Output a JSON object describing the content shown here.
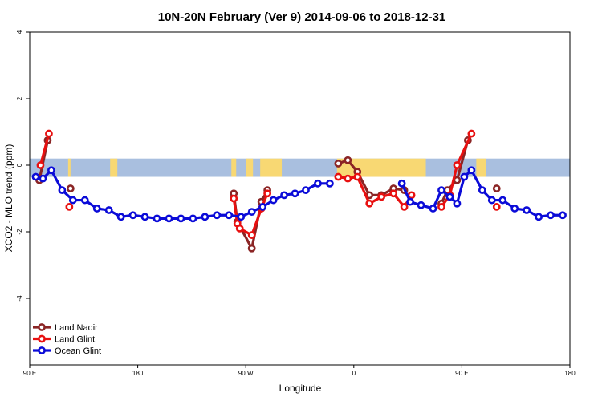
{
  "chart_data": {
    "type": "line",
    "title": "10N-20N February (Ver 9)   2014-09-06 to 2018-12-31",
    "xlabel": "Longitude",
    "ylabel": "XCO2 - MLO trend (ppm)",
    "xlim": [
      90,
      540
    ],
    "ylim": [
      -6,
      4
    ],
    "x_ticks": [
      {
        "value": 90,
        "label": "90 E"
      },
      {
        "value": 180,
        "label": "180"
      },
      {
        "value": 270,
        "label": "90 W"
      },
      {
        "value": 360,
        "label": "0"
      },
      {
        "value": 450,
        "label": "90 E"
      },
      {
        "value": 540,
        "label": "180"
      }
    ],
    "y_ticks": [
      {
        "value": 4,
        "label": "4"
      },
      {
        "value": 2,
        "label": "2"
      },
      {
        "value": 0,
        "label": "0"
      },
      {
        "value": -2,
        "label": "-2"
      },
      {
        "value": -4,
        "label": "-4"
      }
    ],
    "background_band": {
      "y_range": [
        -0.35,
        0.2
      ],
      "ocean_color": "#a9bfdf",
      "land_color": "#f8d873",
      "land_x": [
        [
          122,
          124
        ],
        [
          157,
          163
        ],
        [
          258,
          262
        ],
        [
          270,
          276
        ],
        [
          282,
          300
        ],
        [
          346,
          420
        ],
        [
          462,
          470
        ]
      ]
    },
    "legend_position": "bottom-left",
    "series": [
      {
        "name": "Land Nadir",
        "color": "#8b2525",
        "segments": [
          [
            [
              98,
              -0.45
            ],
            [
              105,
              0.75
            ]
          ],
          [
            [
              124,
              -0.7
            ]
          ],
          [
            [
              260,
              -0.85
            ],
            [
              263,
              -1.7
            ],
            [
              275,
              -2.5
            ],
            [
              283,
              -1.1
            ],
            [
              288,
              -0.75
            ]
          ],
          [
            [
              347,
              0.05
            ],
            [
              355,
              0.15
            ],
            [
              363,
              -0.2
            ],
            [
              373,
              -0.9
            ],
            [
              383,
              -0.9
            ],
            [
              393,
              -0.7
            ],
            [
              402,
              -0.75
            ]
          ],
          [
            [
              433,
              -1.15
            ],
            [
              438,
              -0.75
            ],
            [
              446,
              -0.45
            ],
            [
              455,
              0.75
            ]
          ],
          [
            [
              479,
              -0.7
            ]
          ]
        ]
      },
      {
        "name": "Land Glint",
        "color": "#e81010",
        "segments": [
          [
            [
              99,
              0.0
            ],
            [
              106,
              0.95
            ]
          ],
          [
            [
              123,
              -1.25
            ]
          ],
          [
            [
              260,
              -1.0
            ],
            [
              263,
              -1.75
            ],
            [
              265,
              -1.9
            ],
            [
              275,
              -2.1
            ],
            [
              283,
              -1.3
            ],
            [
              288,
              -0.85
            ]
          ],
          [
            [
              347,
              -0.35
            ],
            [
              355,
              -0.4
            ],
            [
              363,
              -0.35
            ],
            [
              373,
              -1.15
            ],
            [
              383,
              -0.95
            ],
            [
              393,
              -0.85
            ],
            [
              402,
              -1.25
            ],
            [
              408,
              -0.9
            ]
          ],
          [
            [
              433,
              -1.25
            ],
            [
              440,
              -0.9
            ],
            [
              446,
              0.0
            ],
            [
              458,
              0.95
            ]
          ],
          [
            [
              479,
              -1.25
            ]
          ]
        ]
      },
      {
        "name": "Ocean Glint",
        "color": "#0b0bd8",
        "segments": [
          [
            [
              95,
              -0.35
            ],
            [
              101,
              -0.4
            ],
            [
              108,
              -0.15
            ],
            [
              117,
              -0.75
            ],
            [
              126,
              -1.05
            ],
            [
              136,
              -1.05
            ],
            [
              146,
              -1.3
            ],
            [
              156,
              -1.35
            ],
            [
              166,
              -1.55
            ],
            [
              176,
              -1.5
            ],
            [
              186,
              -1.55
            ],
            [
              196,
              -1.6
            ],
            [
              206,
              -1.6
            ],
            [
              216,
              -1.6
            ],
            [
              226,
              -1.6
            ],
            [
              236,
              -1.55
            ],
            [
              246,
              -1.5
            ],
            [
              256,
              -1.5
            ],
            [
              266,
              -1.55
            ],
            [
              275,
              -1.4
            ],
            [
              284,
              -1.25
            ],
            [
              293,
              -1.05
            ],
            [
              302,
              -0.9
            ],
            [
              311,
              -0.85
            ],
            [
              320,
              -0.75
            ],
            [
              330,
              -0.55
            ],
            [
              340,
              -0.55
            ]
          ],
          [
            [
              400,
              -0.55
            ],
            [
              407,
              -1.1
            ],
            [
              416,
              -1.2
            ],
            [
              426,
              -1.3
            ],
            [
              433,
              -0.75
            ],
            [
              440,
              -0.95
            ],
            [
              446,
              -1.15
            ],
            [
              452,
              -0.35
            ],
            [
              458,
              -0.15
            ],
            [
              467,
              -0.75
            ],
            [
              475,
              -1.05
            ],
            [
              484,
              -1.05
            ],
            [
              494,
              -1.3
            ],
            [
              504,
              -1.35
            ],
            [
              514,
              -1.55
            ],
            [
              524,
              -1.5
            ],
            [
              534,
              -1.5
            ]
          ]
        ]
      }
    ]
  }
}
